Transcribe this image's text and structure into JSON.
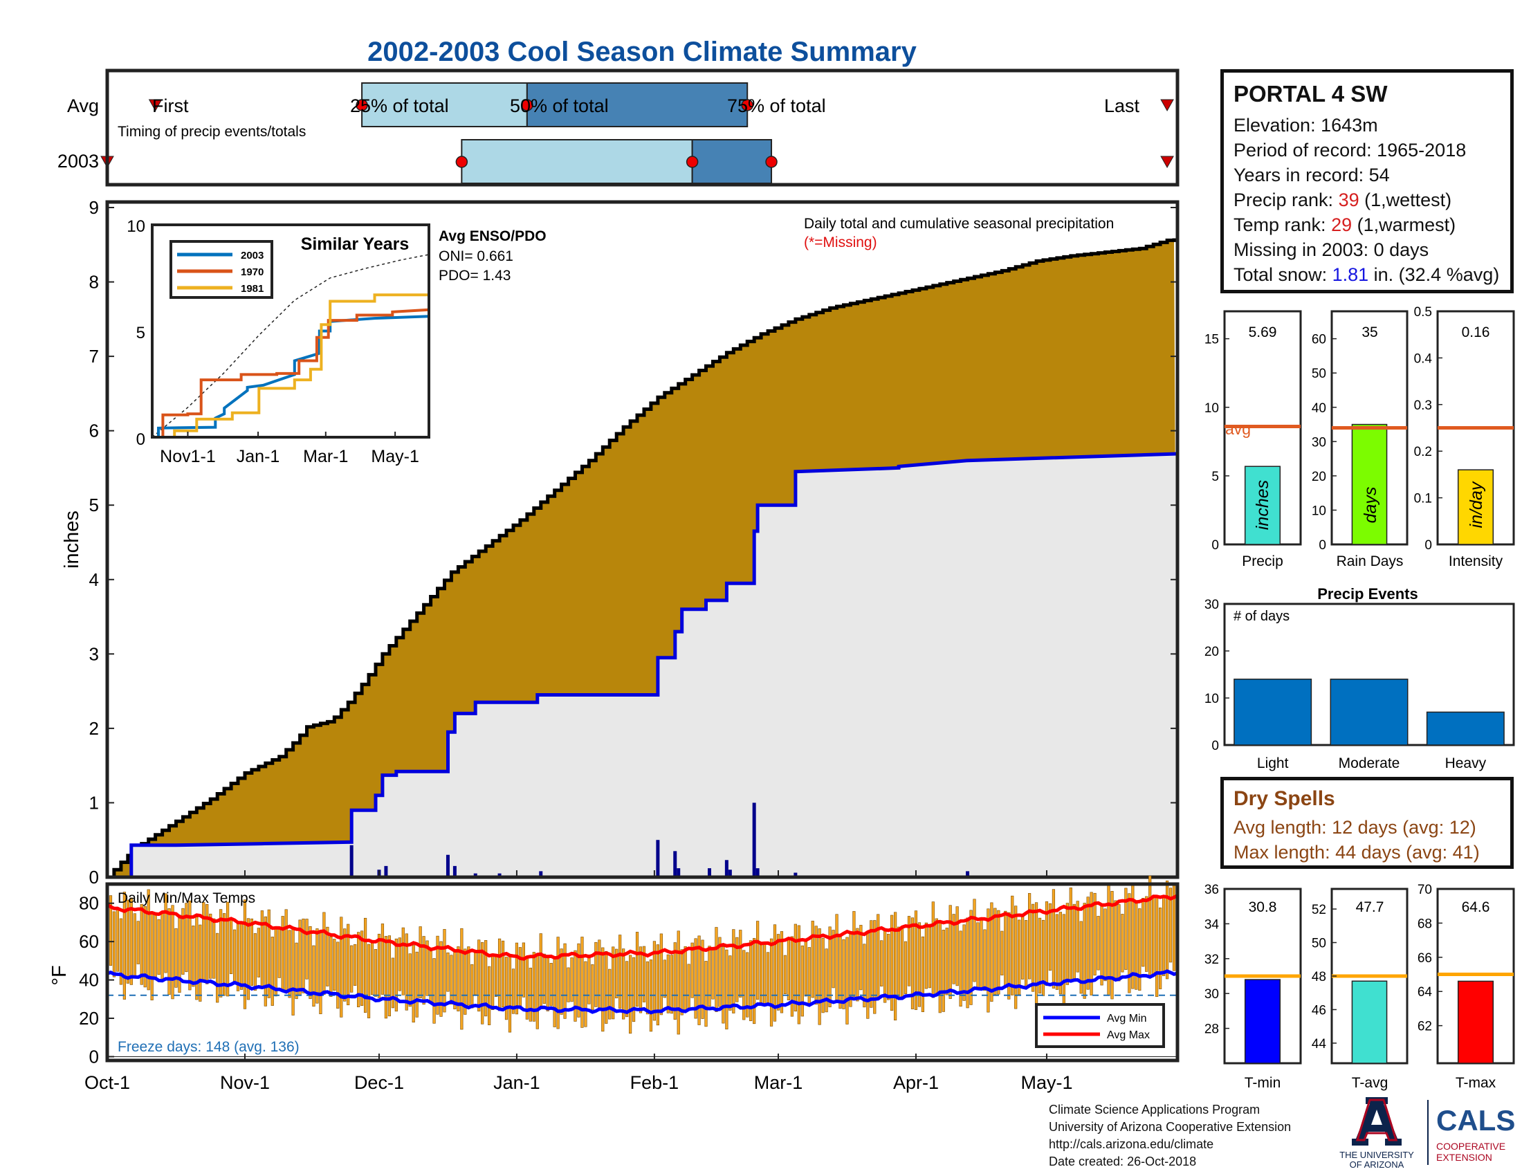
{
  "title": "2002-2003 Cool Season Climate Summary",
  "colors": {
    "title": "#0d4f9c",
    "avg_bar_light": "#add8e6",
    "avg_bar_dark": "#4682b4",
    "cumulative_avg_fill": "#b8860b",
    "cumulative_obs_fill": "#e8e8e8",
    "cumulative_obs_line": "#0000dd",
    "daily_bar": "#00008b",
    "temp_bar": "#f5a623",
    "avg_min": "#0000ff",
    "avg_max": "#ff0000",
    "avg_line": "#e05a20",
    "precip_bar": "#40e0d0",
    "raindays_bar": "#7cfc00",
    "intensity_bar": "#ffd700",
    "events_bar": "#0070c0",
    "tmin_bar": "#0000ff",
    "tavg_bar": "#40e0d0",
    "tmax_bar": "#ff0000",
    "temp_avg_line": "#ffa500"
  },
  "timing_panel": {
    "row_labels": [
      "Avg",
      "2003"
    ],
    "avg_labels": {
      "first": "First",
      "p25": "25% of total",
      "p50": "50% of total",
      "p75": "75% of total",
      "last": "Last"
    },
    "note": "Timing of precip events/totals",
    "avg_days": {
      "first": 14,
      "p25": 74,
      "p50": 122,
      "p75": 186,
      "last": 308
    },
    "obs_days": {
      "first": 0,
      "p25": 103,
      "p50": 170,
      "p75": 193,
      "last": 308
    }
  },
  "main_panel": {
    "ylabel": "inches",
    "note": "Daily total and cumulative seasonal precipitation",
    "note_missing": "(*=Missing)",
    "x_ticks": [
      "Oct-1",
      "Nov-1",
      "Dec-1",
      "Jan-1",
      "Feb-1",
      "Mar-1",
      "Apr-1",
      "May-1"
    ]
  },
  "inset": {
    "title": "Similar Years",
    "enso_title": "Avg ENSO/PDO",
    "oni": "ONI= 0.661",
    "pdo": "PDO= 1.43",
    "x_ticks": [
      "Nov1-1",
      "Jan-1",
      "Mar-1",
      "May-1"
    ],
    "legend": [
      "2003",
      "1970",
      "1981"
    ]
  },
  "temp_panel": {
    "label": "Daily Min/Max Temps",
    "ylabel": "°F",
    "freeze_days": "Freeze days: 148 (avg. 136)",
    "legend": {
      "min": "Avg Min",
      "max": "Avg Max"
    }
  },
  "station": {
    "name": "PORTAL 4 SW",
    "elevation": "Elevation: 1643m",
    "period": "Period of record: 1965-2018",
    "years": "Years in record: 54",
    "precip_rank_label": "Precip rank: ",
    "precip_rank_value": "39",
    "precip_rank_note": " (1,wettest)",
    "temp_rank_label": "Temp rank: ",
    "temp_rank_value": "29",
    "temp_rank_note": " (1,warmest)",
    "missing": "Missing in 2003: 0 days",
    "snow_label": "Total snow: ",
    "snow_value": "1.81",
    "snow_note": " in. (32.4 %avg)"
  },
  "summary_bars": {
    "precip": {
      "label": "Precip",
      "unit": "inches",
      "value_text": "5.69"
    },
    "rain_days": {
      "label": "Rain Days",
      "unit": "days",
      "value_text": "35"
    },
    "intensity": {
      "label": "Intensity",
      "unit": "in/day",
      "value_text": "0.16"
    },
    "avg_text": "avg"
  },
  "events": {
    "title": "Precip Events",
    "ylabel_note": "# of days",
    "categories": [
      "Light",
      "Moderate",
      "Heavy"
    ]
  },
  "dry_spells": {
    "title": "Dry Spells",
    "avg": "Avg length: 12 days (avg: 12)",
    "max": "Max length: 44 days (avg: 41)"
  },
  "temp_summary": {
    "tmin": {
      "label": "T-min",
      "value_text": "30.8"
    },
    "tavg": {
      "label": "T-avg",
      "value_text": "47.7"
    },
    "tmax": {
      "label": "T-max",
      "value_text": "64.6"
    }
  },
  "credits": {
    "line1": "Climate Science Applications Program",
    "line2": "University of Arizona Cooperative Extension",
    "line3": "http://cals.arizona.edu/climate",
    "line4": "Date created: 26-Oct-2018"
  },
  "logos": {
    "ua_line1": "THE UNIVERSITY",
    "ua_line2": "OF ARIZONA",
    "cals": "CALS",
    "cals_line1": "COOPERATIVE",
    "cals_line2": "EXTENSION"
  },
  "chart_data": [
    {
      "type": "area",
      "name": "cumulative_precipitation",
      "ylabel": "inches",
      "ylim": [
        0,
        9
      ],
      "xlim_days": [
        0,
        311
      ],
      "x_ticks": [
        "Oct-1",
        "Nov-1",
        "Dec-1",
        "Jan-1",
        "Feb-1",
        "Mar-1",
        "Apr-1",
        "May-1"
      ],
      "x_tick_days": [
        0,
        40,
        79,
        119,
        159,
        195,
        235,
        273
      ],
      "avg_cumulative": {
        "x_days": [
          0,
          5,
          10,
          20,
          30,
          40,
          50,
          55,
          58,
          65,
          70,
          75,
          80,
          90,
          100,
          110,
          120,
          130,
          140,
          150,
          160,
          170,
          180,
          190,
          200,
          210,
          220,
          230,
          240,
          250,
          260,
          270,
          280,
          290,
          300,
          311
        ],
        "values": [
          0.0,
          0.25,
          0.45,
          0.75,
          1.05,
          1.4,
          1.62,
          1.85,
          2.02,
          2.1,
          2.35,
          2.65,
          3.0,
          3.55,
          4.1,
          4.45,
          4.8,
          5.2,
          5.6,
          6.05,
          6.45,
          6.75,
          7.05,
          7.3,
          7.5,
          7.65,
          7.75,
          7.85,
          7.95,
          8.05,
          8.15,
          8.28,
          8.35,
          8.4,
          8.45,
          8.6
        ]
      },
      "obs_cumulative": {
        "x_days": [
          0,
          7,
          7,
          20,
          45,
          70,
          71,
          71,
          78,
          78,
          80,
          80,
          84,
          84,
          99,
          99,
          101,
          101,
          107,
          107,
          125,
          125,
          160,
          160,
          165,
          165,
          167,
          167,
          174,
          174,
          180,
          180,
          188,
          188,
          189,
          189,
          200,
          200,
          230,
          230,
          250,
          250,
          311
        ],
        "values": [
          0.0,
          0.0,
          0.43,
          0.43,
          0.45,
          0.47,
          0.47,
          0.9,
          0.9,
          1.1,
          1.1,
          1.37,
          1.37,
          1.42,
          1.42,
          1.95,
          1.95,
          2.2,
          2.2,
          2.35,
          2.35,
          2.45,
          2.45,
          2.95,
          2.95,
          3.3,
          3.3,
          3.6,
          3.6,
          3.72,
          3.72,
          3.95,
          3.95,
          4.65,
          4.65,
          5.0,
          5.0,
          5.45,
          5.5,
          5.52,
          5.6,
          5.6,
          5.69
        ]
      },
      "daily_totals": {
        "x_days": [
          8,
          71,
          79,
          81,
          99,
          101,
          107,
          114,
          126,
          160,
          165,
          166,
          175,
          180,
          181,
          188,
          189,
          200,
          250
        ],
        "values": [
          0.02,
          0.43,
          0.1,
          0.15,
          0.3,
          0.15,
          0.05,
          0.05,
          0.08,
          0.5,
          0.35,
          0.12,
          0.12,
          0.23,
          0.1,
          1.0,
          0.12,
          0.06,
          0.08
        ]
      }
    },
    {
      "type": "line",
      "name": "similar_years",
      "title": "Similar Years",
      "ylim": [
        0,
        10
      ],
      "xlim_days": [
        0,
        311
      ],
      "x_ticks": [
        "Nov1-1",
        "Jan-1",
        "Mar-1",
        "May-1"
      ],
      "x_tick_days": [
        40,
        119,
        195,
        273
      ],
      "series": [
        {
          "name": "avg",
          "x_days": [
            0,
            40,
            80,
            120,
            160,
            200,
            240,
            280,
            311
          ],
          "values": [
            0.0,
            1.4,
            3.0,
            4.8,
            6.45,
            7.5,
            7.95,
            8.35,
            8.6
          ]
        },
        {
          "name": "2003",
          "x_days": [
            0,
            7,
            7,
            71,
            71,
            81,
            81,
            107,
            107,
            125,
            125,
            160,
            160,
            188,
            188,
            200,
            200,
            250,
            311
          ],
          "values": [
            0.0,
            0.0,
            0.43,
            0.47,
            0.9,
            1.1,
            1.37,
            2.2,
            2.35,
            2.45,
            2.45,
            2.95,
            3.6,
            3.95,
            5.0,
            5.0,
            5.45,
            5.6,
            5.69
          ]
        },
        {
          "name": "1970",
          "x_days": [
            0,
            12,
            12,
            40,
            40,
            55,
            55,
            100,
            100,
            140,
            140,
            165,
            165,
            185,
            185,
            198,
            198,
            230,
            230,
            270,
            270,
            311
          ],
          "values": [
            0.0,
            0.0,
            1.05,
            1.05,
            1.1,
            1.1,
            2.7,
            2.7,
            2.95,
            2.95,
            3.0,
            3.0,
            3.6,
            3.6,
            4.7,
            4.7,
            5.5,
            5.5,
            5.75,
            5.75,
            5.9,
            6.0
          ]
        },
        {
          "name": "1981",
          "x_days": [
            0,
            25,
            25,
            50,
            50,
            90,
            90,
            120,
            120,
            160,
            160,
            178,
            178,
            190,
            190,
            200,
            200,
            250,
            250,
            311
          ],
          "values": [
            0.0,
            0.0,
            0.3,
            0.3,
            0.85,
            0.85,
            1.15,
            1.15,
            2.3,
            2.3,
            2.7,
            2.7,
            3.2,
            3.2,
            5.3,
            5.3,
            6.4,
            6.4,
            6.7,
            6.7
          ]
        }
      ]
    },
    {
      "type": "bar",
      "name": "daily_min_max_temps",
      "ylabel": "°F",
      "ylim": [
        -2,
        90
      ],
      "freeze_line": 32,
      "avg_min": {
        "x_days": [
          0,
          40,
          80,
          119,
          159,
          195,
          235,
          273,
          311
        ],
        "values": [
          43,
          37,
          30,
          25,
          24,
          27,
          32,
          38,
          44
        ]
      },
      "avg_max": {
        "x_days": [
          0,
          40,
          80,
          119,
          159,
          195,
          235,
          273,
          311
        ],
        "values": [
          78,
          70,
          60,
          52,
          54,
          60,
          68,
          76,
          84
        ]
      }
    },
    {
      "type": "bar",
      "name": "precip_summary",
      "categories": [
        "Precip"
      ],
      "values": [
        5.69
      ],
      "avg": 8.6,
      "ylim": [
        0,
        17
      ],
      "y_ticks": [
        0,
        5,
        10,
        15
      ]
    },
    {
      "type": "bar",
      "name": "rain_days_summary",
      "categories": [
        "Rain Days"
      ],
      "values": [
        35
      ],
      "avg": 34,
      "ylim": [
        0,
        68
      ],
      "y_ticks": [
        0,
        10,
        20,
        30,
        40,
        50,
        60
      ]
    },
    {
      "type": "bar",
      "name": "intensity_summary",
      "categories": [
        "Intensity"
      ],
      "values": [
        0.16
      ],
      "avg": 0.25,
      "ylim": [
        0,
        0.5
      ],
      "y_ticks": [
        0,
        0.1,
        0.2,
        0.3,
        0.4,
        0.5
      ]
    },
    {
      "type": "bar",
      "name": "precip_events",
      "title": "Precip Events",
      "categories": [
        "Light",
        "Moderate",
        "Heavy"
      ],
      "values": [
        14,
        14,
        7
      ],
      "ylim": [
        0,
        30
      ],
      "y_ticks": [
        0,
        10,
        20,
        30
      ]
    },
    {
      "type": "bar",
      "name": "tmin_summary",
      "categories": [
        "T-min"
      ],
      "values": [
        30.8
      ],
      "avg": 31.0,
      "ylim": [
        26,
        36
      ],
      "y_ticks": [
        28,
        30,
        32,
        34,
        36
      ]
    },
    {
      "type": "bar",
      "name": "tavg_summary",
      "categories": [
        "T-avg"
      ],
      "values": [
        47.7
      ],
      "avg": 48.0,
      "ylim": [
        42.8,
        53.2
      ],
      "y_ticks": [
        44,
        46,
        48,
        50,
        52
      ]
    },
    {
      "type": "bar",
      "name": "tmax_summary",
      "categories": [
        "T-max"
      ],
      "values": [
        64.6
      ],
      "avg": 65.0,
      "ylim": [
        59.8,
        70
      ],
      "y_ticks": [
        62,
        64,
        66,
        68,
        70
      ]
    }
  ]
}
